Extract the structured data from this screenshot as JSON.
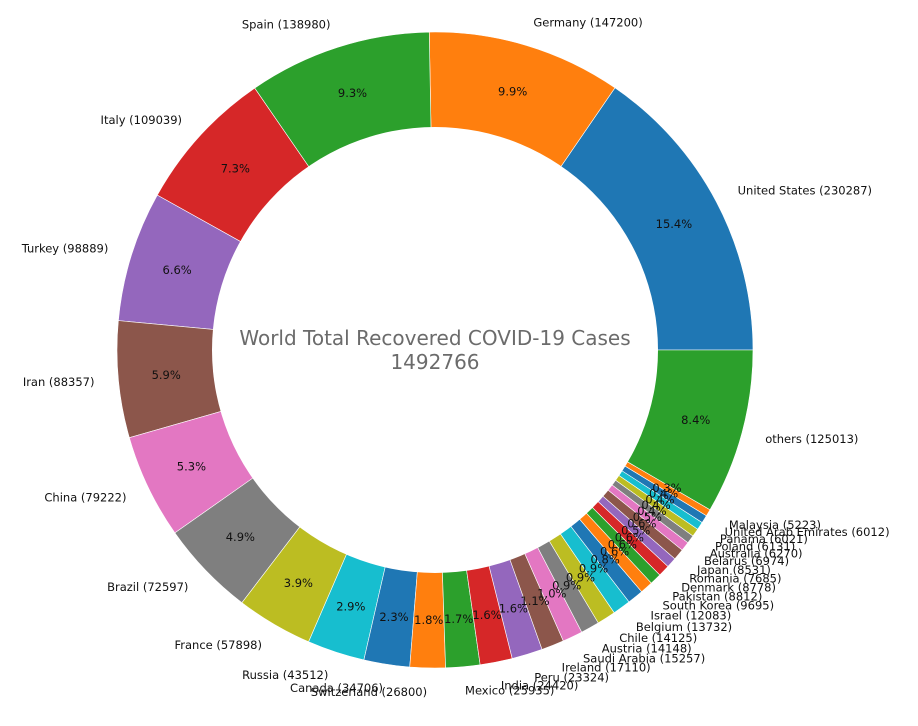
{
  "chart_data": {
    "type": "pie",
    "title": "World Total Recovered COVID-19 Cases",
    "total": "1492766",
    "donut": true,
    "start_angle_deg": 0,
    "direction": "counterclockwise",
    "slices": [
      {
        "label": "United States (230287)",
        "value": 230287,
        "pct": "15.4%",
        "color": "#1f77b4"
      },
      {
        "label": "Germany (147200)",
        "value": 147200,
        "pct": "9.9%",
        "color": "#ff7f0e"
      },
      {
        "label": "Spain (138980)",
        "value": 138980,
        "pct": "9.3%",
        "color": "#2ca02c"
      },
      {
        "label": "Italy (109039)",
        "value": 109039,
        "pct": "7.3%",
        "color": "#d62728"
      },
      {
        "label": "Turkey (98889)",
        "value": 98889,
        "pct": "6.6%",
        "color": "#9467bd"
      },
      {
        "label": "Iran (88357)",
        "value": 88357,
        "pct": "5.9%",
        "color": "#8c564b"
      },
      {
        "label": "China (79222)",
        "value": 79222,
        "pct": "5.3%",
        "color": "#e377c2"
      },
      {
        "label": "Brazil (72597)",
        "value": 72597,
        "pct": "4.9%",
        "color": "#7f7f7f"
      },
      {
        "label": "France (57898)",
        "value": 57898,
        "pct": "3.9%",
        "color": "#bcbd22"
      },
      {
        "label": "Russia (43512)",
        "value": 43512,
        "pct": "2.9%",
        "color": "#17becf"
      },
      {
        "label": "Canada (34706)",
        "value": 34706,
        "pct": "2.3%",
        "color": "#1f77b4"
      },
      {
        "label": "Switzerland (26800)",
        "value": 26800,
        "pct": "1.8%",
        "color": "#ff7f0e"
      },
      {
        "label": "Mexico (25935)",
        "value": 25935,
        "pct": "1.7%",
        "color": "#2ca02c"
      },
      {
        "label": "India (24420)",
        "value": 24420,
        "pct": "1.6%",
        "color": "#d62728"
      },
      {
        "label": "Peru (23324)",
        "value": 23324,
        "pct": "1.6%",
        "color": "#9467bd"
      },
      {
        "label": "Ireland (17110)",
        "value": 17110,
        "pct": "1.1%",
        "color": "#8c564b"
      },
      {
        "label": "Saudi Arabia (15257)",
        "value": 15257,
        "pct": "1.0%",
        "color": "#e377c2"
      },
      {
        "label": "Austria (14148)",
        "value": 14148,
        "pct": "0.9%",
        "color": "#7f7f7f"
      },
      {
        "label": "Chile (14125)",
        "value": 14125,
        "pct": "0.9%",
        "color": "#bcbd22"
      },
      {
        "label": "Belgium (13732)",
        "value": 13732,
        "pct": "0.9%",
        "color": "#17becf"
      },
      {
        "label": "Israel (12083)",
        "value": 12083,
        "pct": "0.8%",
        "color": "#1f77b4"
      },
      {
        "label": "South Korea (9695)",
        "value": 9695,
        "pct": "0.6%",
        "color": "#ff7f0e"
      },
      {
        "label": "Pakistan (8812)",
        "value": 8812,
        "pct": "0.6%",
        "color": "#2ca02c"
      },
      {
        "label": "Denmark (8778)",
        "value": 8778,
        "pct": "0.6%",
        "color": "#d62728"
      },
      {
        "label": "Romania (7685)",
        "value": 7685,
        "pct": "0.5%",
        "color": "#9467bd"
      },
      {
        "label": "Japan (8531)",
        "value": 8531,
        "pct": "0.6%",
        "color": "#8c564b"
      },
      {
        "label": "Belarus (6974)",
        "value": 6974,
        "pct": "0.5%",
        "color": "#e377c2"
      },
      {
        "label": "Australia (6270)",
        "value": 6270,
        "pct": "0.4%",
        "color": "#7f7f7f"
      },
      {
        "label": "Poland (6131)",
        "value": 6131,
        "pct": "0.4%",
        "color": "#bcbd22"
      },
      {
        "label": "Panama (6021)",
        "value": 6021,
        "pct": "0.4%",
        "color": "#17becf"
      },
      {
        "label": "United Arab Emirates (6012)",
        "value": 6012,
        "pct": "0.4%",
        "color": "#1f77b4"
      },
      {
        "label": "Malaysia (5223)",
        "value": 5223,
        "pct": "0.3%",
        "color": "#ff7f0e"
      },
      {
        "label": "others (125013)",
        "value": 125013,
        "pct": "8.4%",
        "color": "#2ca02c"
      }
    ]
  }
}
